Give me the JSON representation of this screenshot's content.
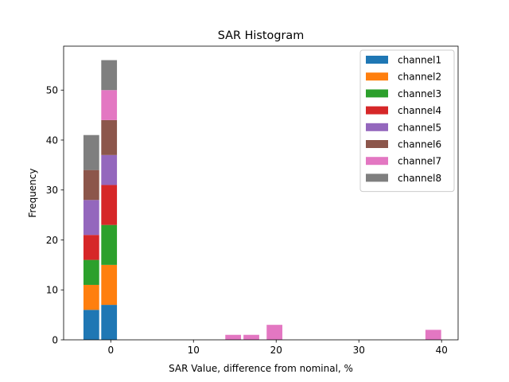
{
  "chart_data": {
    "type": "bar",
    "stacked": true,
    "title": "SAR Histogram",
    "xlabel": "SAR Value, difference from nominal, %",
    "ylabel": "Frequency",
    "xlim": [
      -5.7,
      42
    ],
    "ylim": [
      0,
      58.8
    ],
    "x_ticks": [
      0,
      10,
      20,
      30,
      40
    ],
    "y_ticks": [
      0,
      10,
      20,
      30,
      40,
      50
    ],
    "bar_width": 1.9,
    "legend_position": "top-right",
    "bins": [
      -2.35,
      -0.2,
      14.8,
      17.0,
      19.8,
      39.0
    ],
    "series": [
      {
        "name": "channel1",
        "color": "#1f77b4",
        "values": [
          6,
          7,
          0,
          0,
          0,
          0
        ]
      },
      {
        "name": "channel2",
        "color": "#ff7f0e",
        "values": [
          5,
          8,
          0,
          0,
          0,
          0
        ]
      },
      {
        "name": "channel3",
        "color": "#2ca02c",
        "values": [
          5,
          8,
          0,
          0,
          0,
          0
        ]
      },
      {
        "name": "channel4",
        "color": "#d62728",
        "values": [
          5,
          8,
          0,
          0,
          0,
          0
        ]
      },
      {
        "name": "channel5",
        "color": "#9467bd",
        "values": [
          7,
          6,
          0,
          0,
          0,
          0
        ]
      },
      {
        "name": "channel6",
        "color": "#8c564b",
        "values": [
          6,
          7,
          0,
          0,
          0,
          0
        ]
      },
      {
        "name": "channel7",
        "color": "#e377c2",
        "values": [
          0,
          6,
          1,
          1,
          3,
          2
        ]
      },
      {
        "name": "channel8",
        "color": "#7f7f7f",
        "values": [
          7,
          6,
          0,
          0,
          0,
          0
        ]
      }
    ]
  }
}
